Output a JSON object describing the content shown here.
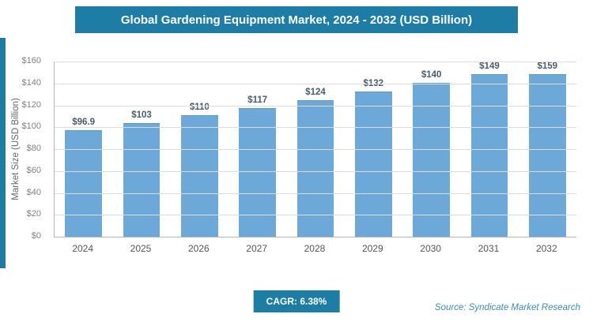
{
  "header": {
    "title": "Global Gardening Equipment Market, 2024 - 2032 (USD Billion)"
  },
  "chart_data": {
    "type": "bar",
    "categories": [
      "2024",
      "2025",
      "2026",
      "2027",
      "2028",
      "2029",
      "2030",
      "2031",
      "2032"
    ],
    "values": [
      96.9,
      103,
      110,
      117,
      124,
      132,
      140,
      149,
      159
    ],
    "value_labels": [
      "$96.9",
      "$103",
      "$110",
      "$117",
      "$124",
      "$132",
      "$140",
      "$149",
      "$159"
    ],
    "title": "Global Gardening Equipment Market, 2024 - 2032 (USD Billion)",
    "xlabel": "",
    "ylabel": "Market Size (USD Billion)",
    "ylim": [
      0,
      160
    ],
    "ytick_step": 20,
    "ytick_labels": [
      "$0",
      "$20",
      "$40",
      "$60",
      "$80",
      "$100",
      "$120",
      "$140",
      "$160"
    ],
    "grid": true,
    "legend": "none",
    "bar_color": "#6CA9D9"
  },
  "footer": {
    "cagr_label": "CAGR: 6.38%",
    "source": "Source: Syndicate Market Research"
  },
  "colors": {
    "accent": "#1D7DA5",
    "bar": "#6CA9D9",
    "value_label": "#4a5b6b"
  }
}
